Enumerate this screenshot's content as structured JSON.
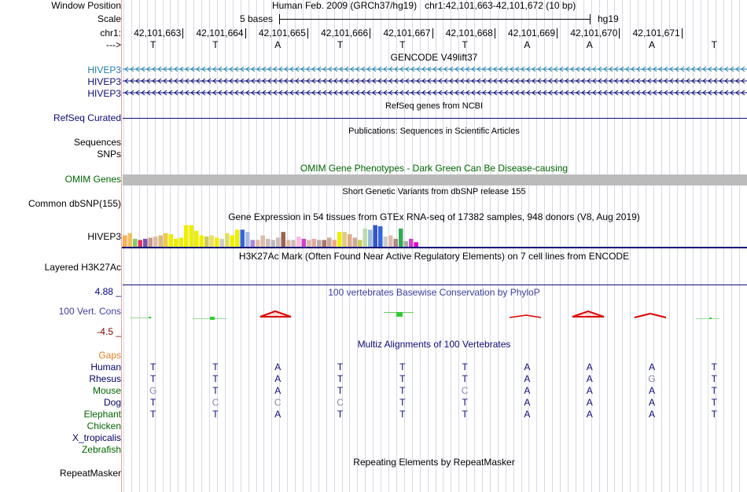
{
  "header": {
    "window_position_label": "Window Position",
    "window_position_value": "Human Feb. 2009 (GRCh37/hg19)   chr1:42,101,663-42,101,672 (10 bp)",
    "scale_label": "Scale",
    "scale_value": "5 bases",
    "scale_assembly": "hg19",
    "chrom_label": "chr1:",
    "strand_label": "--->",
    "coordinates": [
      "42,101,663",
      "42,101,664",
      "42,101,665",
      "42,101,666",
      "42,101,667",
      "42,101,668",
      "42,101,669",
      "42,101,670",
      "42,101,671"
    ],
    "bases": [
      "T",
      "T",
      "A",
      "T",
      "T",
      "T",
      "A",
      "A",
      "A",
      "T"
    ]
  },
  "tracks": {
    "gencode": {
      "title": "GENCODE V49lift37",
      "items": [
        "HIVEP3",
        "HIVEP3",
        "HIVEP3"
      ]
    },
    "refseq": {
      "title": "RefSeq genes from NCBI",
      "label": "RefSeq Curated"
    },
    "publications": {
      "title": "Publications: Sequences in Scientific Articles",
      "label1": "Sequences",
      "label2": "SNPs"
    },
    "omim": {
      "title": "OMIM Gene Phenotypes - Dark Green Can Be Disease-causing",
      "label": "OMIM Genes"
    },
    "dbsnp": {
      "title": "Short Genetic Variants from dbSNP release 155",
      "label": "Common dbSNP(155)"
    },
    "gtex": {
      "title": "Gene Expression in 54 tissues from GTEx RNA-seq of 17382 samples, 948 donors (V8, Aug 2019)",
      "label": "HIVEP3",
      "levels": [
        0.5,
        0.6,
        0.35,
        0.3,
        0.35,
        0.4,
        0.45,
        0.5,
        0.6,
        0.55,
        0.35,
        0.4,
        0.95,
        0.95,
        0.7,
        0.5,
        0.45,
        0.5,
        0.4,
        0.35,
        0.6,
        0.5,
        0.75,
        0.75,
        0.65,
        0.3,
        0.3,
        0.5,
        0.35,
        0.3,
        0.4,
        0.65,
        0.3,
        0.3,
        0.45,
        0.35,
        0.3,
        0.35,
        0.3,
        0.3,
        0.4,
        0.3,
        0.65,
        0.65,
        0.55,
        0.4,
        0.3,
        0.8,
        0.75,
        0.95,
        0.9,
        0.45,
        0.5,
        0.35,
        0.8,
        0.25,
        0.35,
        0.2
      ],
      "colors": [
        "#ffaa55",
        "#f0c060",
        "#88cc66",
        "#dd3366",
        "#7755aa",
        "#cc9988",
        "#ddbbaa",
        "#ddbb77",
        "#eecc44",
        "#eeee00",
        "#eeee00",
        "#eeee00",
        "#eeee00",
        "#eeee00",
        "#eeee00",
        "#eeee00",
        "#cccc55",
        "#eedd66",
        "#eeee00",
        "#cccccc",
        "#dddd66",
        "#eeee00",
        "#eeee00",
        "#3366dd",
        "#aabbdd",
        "#aa88dd",
        "#ddbbaa",
        "#ddbbaa",
        "#ccbbbb",
        "#bbbbbb",
        "#ccbbbb",
        "#996655",
        "#ddbbaa",
        "#ccbbbb",
        "#ffbbdd",
        "#cc44cc",
        "#ddbbaa",
        "#ddaaaa",
        "#bbaaaa",
        "#aa7766",
        "#ccaa99",
        "#eeaa88",
        "#eeee00",
        "#ddcc88",
        "#ddaa88",
        "#ccaa99",
        "#cccc55",
        "#bbddaa",
        "#99bbdd",
        "#3355cc",
        "#3366dd",
        "#cccccc",
        "#ddbbaa",
        "#aa8888",
        "#33aa55",
        "#aaaaaa",
        "#cc44cc",
        "#dd00cc"
      ]
    },
    "h3k27ac": {
      "title": "H3K27Ac Mark (Often Found Near Active Regulatory Elements) on 7 cell lines from ENCODE",
      "label": "Layered H3K27Ac"
    },
    "phylop": {
      "title": "100 vertebrates Basewise Conservation by PhyloP",
      "label": "100 Vert. Cons",
      "ymax": "4.88 _",
      "ymin": "-4.5 _"
    },
    "multiz": {
      "title": "Multiz Alignments of 100 Vertebrates",
      "gaps_label": "Gaps",
      "species": [
        {
          "name": "Human",
          "seq": [
            "T",
            "T",
            "A",
            "T",
            "T",
            "T",
            "A",
            "A",
            "A",
            "T"
          ],
          "color": "#000066"
        },
        {
          "name": "Rhesus",
          "seq": [
            "T",
            "T",
            "A",
            "T",
            "T",
            "T",
            "A",
            "A",
            "G",
            "T"
          ],
          "color": "#000066"
        },
        {
          "name": "Mouse",
          "seq": [
            "G",
            "T",
            "A",
            "T",
            "T",
            "C",
            "A",
            "A",
            "A",
            "T"
          ],
          "color": "#006600"
        },
        {
          "name": "Dog",
          "seq": [
            "T",
            "C",
            "C",
            "C",
            "T",
            "T",
            "A",
            "A",
            "A",
            "T"
          ],
          "color": "#000066"
        },
        {
          "name": "Elephant",
          "seq": [
            "T",
            "T",
            "A",
            "T",
            "T",
            "T",
            "A",
            "A",
            "A",
            "T"
          ],
          "color": "#006600"
        },
        {
          "name": "Chicken",
          "seq": [],
          "color": "#006600"
        },
        {
          "name": "X_tropicalis",
          "seq": [],
          "color": "#000066"
        },
        {
          "name": "Zebrafish",
          "seq": [],
          "color": "#006600"
        }
      ],
      "mismatch": [
        [],
        [
          8
        ],
        [
          0,
          5
        ],
        [
          1,
          2,
          3
        ],
        [],
        [],
        [],
        []
      ]
    },
    "repeatmasker": {
      "title": "Repeating Elements by RepeatMasker",
      "label": "RepeatMasker"
    }
  },
  "colors": {
    "gencode_label": "#2080b0",
    "navy": "#0c0c78",
    "omim_bar": "#bbbbbb",
    "gaps": "#e08020",
    "phylop_title": "#4040a0",
    "phylop_max": "#000080",
    "phylop_min": "#800000"
  }
}
